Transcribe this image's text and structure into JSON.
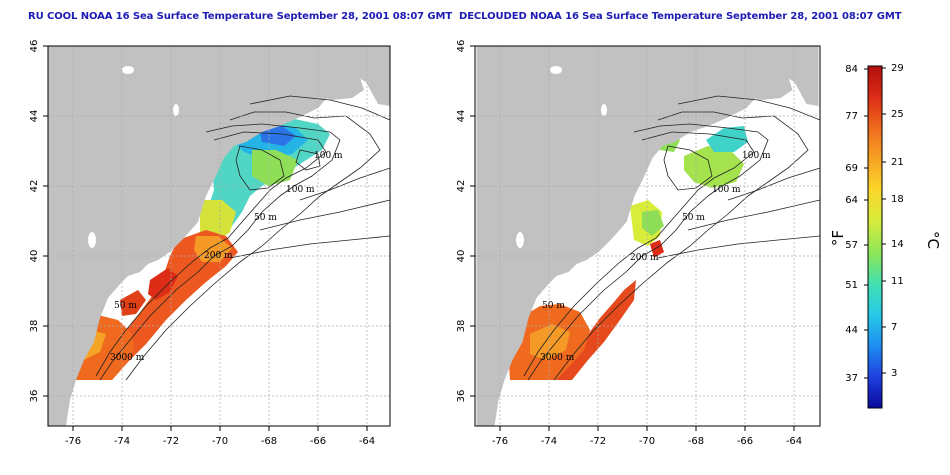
{
  "panels": [
    {
      "title": "RU COOL NOAA 16 Sea Surface Temperature September 28, 2001 08:07 GMT",
      "contour_labels": [
        "100 m",
        "100 m",
        "50 m",
        "200 m",
        "50 m",
        "3000 m"
      ]
    },
    {
      "title": "DECLOUDED NOAA 16 Sea Surface Temperature September 28, 2001 08:07 GMT",
      "contour_labels": [
        "100 m",
        "100 m",
        "50 m",
        "200 m",
        "50 m",
        "3000 m"
      ]
    }
  ],
  "axes": {
    "lon_ticks": [
      "-76",
      "-74",
      "-72",
      "-70",
      "-68",
      "-66",
      "-64"
    ],
    "lat_ticks": [
      "46",
      "44",
      "42",
      "40",
      "38",
      "36"
    ]
  },
  "colorbar": {
    "fahrenheit_label": "°F",
    "celsius_label": "°C",
    "fahrenheit_ticks": [
      "84",
      "77",
      "69",
      "64",
      "57",
      "51",
      "44",
      "37"
    ],
    "celsius_ticks": [
      "29",
      "25",
      "21",
      "18",
      "14",
      "11",
      "7",
      "3"
    ],
    "colors": [
      "#0a0a9a",
      "#1f3fe0",
      "#1e8cf0",
      "#27c8e8",
      "#3fe0b4",
      "#8be65a",
      "#d8ec3a",
      "#fbd52a",
      "#f6a224",
      "#ef6a1e",
      "#dc2c16",
      "#b30f0f"
    ]
  },
  "colors": {
    "land": "#c1c1c1",
    "cloud": "#ffffff",
    "title": "#1c1cb4"
  }
}
